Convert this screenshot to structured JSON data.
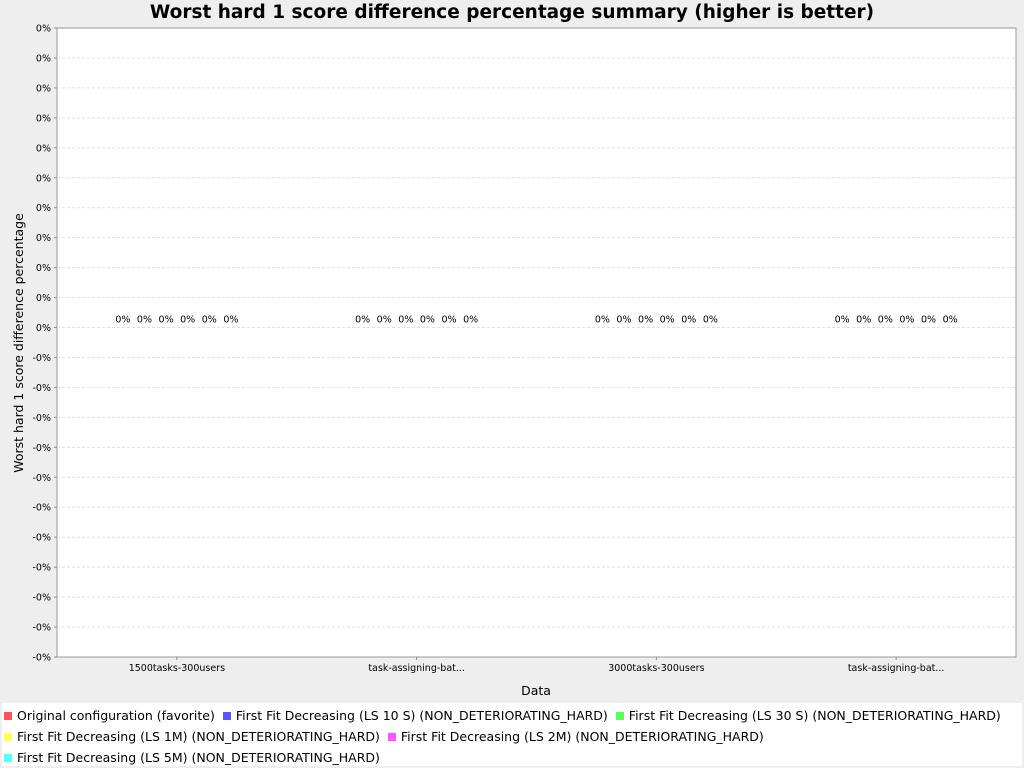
{
  "chart_data": {
    "type": "bar",
    "title": "Worst hard 1 score difference percentage summary (higher is better)",
    "xlabel": "Data",
    "ylabel": "Worst hard 1 score difference percentage",
    "categories": [
      "1500tasks-300users",
      "task-assigning-bat...",
      "3000tasks-300users",
      "task-assigning-bat..."
    ],
    "y_tick_labels": [
      "0%",
      "0%",
      "0%",
      "0%",
      "0%",
      "0%",
      "0%",
      "0%",
      "0%",
      "0%",
      "0%",
      "-0%",
      "-0%",
      "-0%",
      "-0%",
      "-0%",
      "-0%",
      "-0%",
      "-0%",
      "-0%",
      "-0%",
      "-0%"
    ],
    "grid": true,
    "legend_position": "bottom",
    "series": [
      {
        "name": "Original configuration (favorite)",
        "color": "#ff5555",
        "values": [
          0,
          0,
          0,
          0
        ],
        "labels": [
          "0%",
          "0%",
          "0%",
          "0%"
        ]
      },
      {
        "name": "First Fit Decreasing (LS 10 S) (NON_DETERIORATING_HARD)",
        "color": "#5555ff",
        "values": [
          0,
          0,
          0,
          0
        ],
        "labels": [
          "0%",
          "0%",
          "0%",
          "0%"
        ]
      },
      {
        "name": "First Fit Decreasing (LS 30 S) (NON_DETERIORATING_HARD)",
        "color": "#55ff55",
        "values": [
          0,
          0,
          0,
          0
        ],
        "labels": [
          "0%",
          "0%",
          "0%",
          "0%"
        ]
      },
      {
        "name": "First Fit Decreasing (LS 1M) (NON_DETERIORATING_HARD)",
        "color": "#ffff55",
        "values": [
          0,
          0,
          0,
          0
        ],
        "labels": [
          "0%",
          "0%",
          "0%",
          "0%"
        ]
      },
      {
        "name": "First Fit Decreasing (LS 2M) (NON_DETERIORATING_HARD)",
        "color": "#ff55ff",
        "values": [
          0,
          0,
          0,
          0
        ],
        "labels": [
          "0%",
          "0%",
          "0%",
          "0%"
        ]
      },
      {
        "name": "First Fit Decreasing (LS 5M) (NON_DETERIORATING_HARD)",
        "color": "#55ffff",
        "values": [
          0,
          0,
          0,
          0
        ],
        "labels": [
          "0%",
          "0%",
          "0%",
          "0%"
        ]
      }
    ]
  }
}
